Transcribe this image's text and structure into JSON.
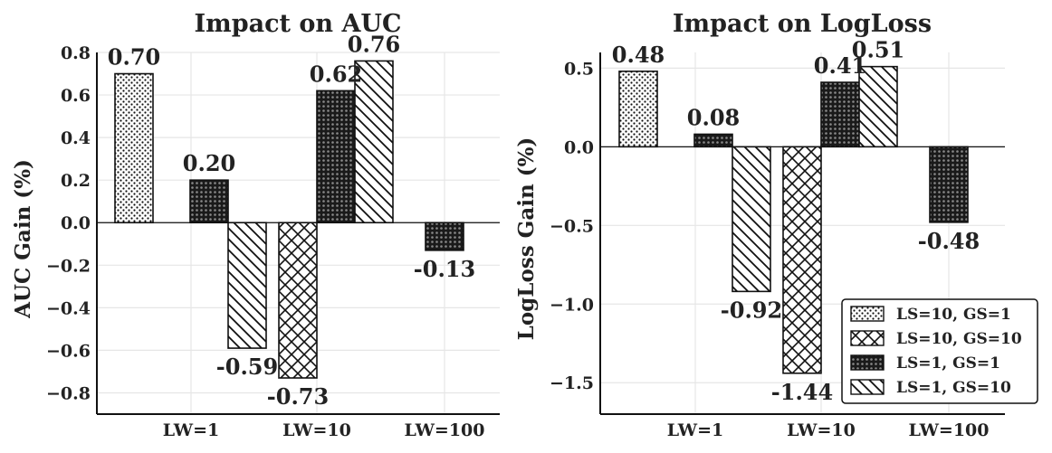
{
  "chart_data": [
    {
      "type": "bar",
      "title": "Impact on AUC",
      "xlabel": "",
      "ylabel": "AUC Gain (%)",
      "categories": [
        "LW=1",
        "LW=10",
        "LW=100"
      ],
      "ylim": [
        -0.9,
        0.8
      ],
      "yticks": [
        0.8,
        0.6,
        0.4,
        0.2,
        0.0,
        -0.2,
        -0.4,
        -0.6,
        -0.8
      ],
      "ytick_labels": [
        "0.8",
        "0.6",
        "0.4",
        "0.2",
        "0.0",
        "−0.2",
        "−0.4",
        "−0.6",
        "−0.8"
      ],
      "bars": [
        {
          "series": "LS=10, GS=1",
          "category": "LW=1",
          "value": 0.7,
          "label": "0.70"
        },
        {
          "series": "LS=1, GS=1",
          "category": "LW=1",
          "value": 0.2,
          "label": "0.20"
        },
        {
          "series": "LS=1, GS=10",
          "category": "LW=1",
          "value": -0.59,
          "label": "-0.59"
        },
        {
          "series": "LS=10, GS=10",
          "category": "LW=10",
          "value": -0.73,
          "label": "-0.73"
        },
        {
          "series": "LS=1, GS=1",
          "category": "LW=10",
          "value": 0.62,
          "label": "0.62"
        },
        {
          "series": "LS=1, GS=10",
          "category": "LW=10",
          "value": 0.76,
          "label": "0.76"
        },
        {
          "series": "LS=1, GS=1",
          "category": "LW=100",
          "value": -0.13,
          "label": "-0.13"
        }
      ]
    },
    {
      "type": "bar",
      "title": "Impact on LogLoss",
      "xlabel": "",
      "ylabel": "LogLoss Gain (%)",
      "categories": [
        "LW=1",
        "LW=10",
        "LW=100"
      ],
      "ylim": [
        -1.7,
        0.6
      ],
      "yticks": [
        0.5,
        0.0,
        -0.5,
        -1.0,
        -1.5
      ],
      "ytick_labels": [
        "0.5",
        "0.0",
        "−0.5",
        "−1.0",
        "−1.5"
      ],
      "bars": [
        {
          "series": "LS=10, GS=1",
          "category": "LW=1",
          "value": 0.48,
          "label": "0.48"
        },
        {
          "series": "LS=1, GS=1",
          "category": "LW=1",
          "value": 0.08,
          "label": "0.08"
        },
        {
          "series": "LS=1, GS=10",
          "category": "LW=1",
          "value": -0.92,
          "label": "-0.92"
        },
        {
          "series": "LS=10, GS=10",
          "category": "LW=10",
          "value": -1.44,
          "label": "-1.44"
        },
        {
          "series": "LS=1, GS=1",
          "category": "LW=10",
          "value": 0.41,
          "label": "0.41"
        },
        {
          "series": "LS=1, GS=10",
          "category": "LW=10",
          "value": 0.51,
          "label": "0.51"
        },
        {
          "series": "LS=1, GS=1",
          "category": "LW=100",
          "value": -0.48,
          "label": "-0.48"
        }
      ]
    }
  ],
  "legend": {
    "position": "lower-right",
    "entries": [
      {
        "label": "LS=10, GS=1",
        "pattern": "dots"
      },
      {
        "label": "LS=10, GS=10",
        "pattern": "crosshatch"
      },
      {
        "label": "LS=1, GS=1",
        "pattern": "dense"
      },
      {
        "label": "LS=1, GS=10",
        "pattern": "backslash"
      }
    ]
  },
  "colors": {
    "ink": "#111111",
    "grid": "#e6e6e6",
    "background": "#ffffff"
  }
}
